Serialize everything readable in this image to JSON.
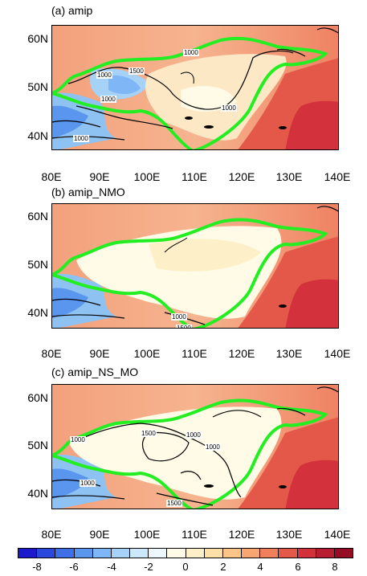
{
  "panels": [
    {
      "title": "(a) amip"
    },
    {
      "title": "(b) amip_NMO"
    },
    {
      "title": "(c) amip_NS_MO"
    }
  ],
  "lat_labels": [
    "60N",
    "50N",
    "40N"
  ],
  "lon_labels": [
    "80E",
    "90E",
    "100E",
    "110E",
    "120E",
    "130E",
    "140E"
  ],
  "contour_labels": {
    "panel_a": [
      "1000",
      "1000",
      "1500",
      "1000",
      "1000",
      "1000"
    ],
    "panel_b": [
      "1000",
      "1500"
    ],
    "panel_c": [
      "1000",
      "1500",
      "1000",
      "1000",
      "1000",
      "1500"
    ]
  },
  "colorbar": {
    "labels": [
      "-8",
      "-6",
      "-4",
      "-2",
      "0",
      "2",
      "4",
      "6",
      "8"
    ],
    "colors": [
      "#1a1acc",
      "#2c47db",
      "#3f6fe6",
      "#5a95ee",
      "#7fb6f5",
      "#a6d2f8",
      "#cce8fb",
      "#ecf8fd",
      "#fffbe6",
      "#fdf0c8",
      "#fddfa8",
      "#fbc58a",
      "#f7a572",
      "#f07f5c",
      "#e4584a",
      "#d3323c",
      "#b81d30",
      "#950d24"
    ]
  },
  "colors": {
    "plateau_outline": "#22ee22",
    "contour": "#000000"
  }
}
